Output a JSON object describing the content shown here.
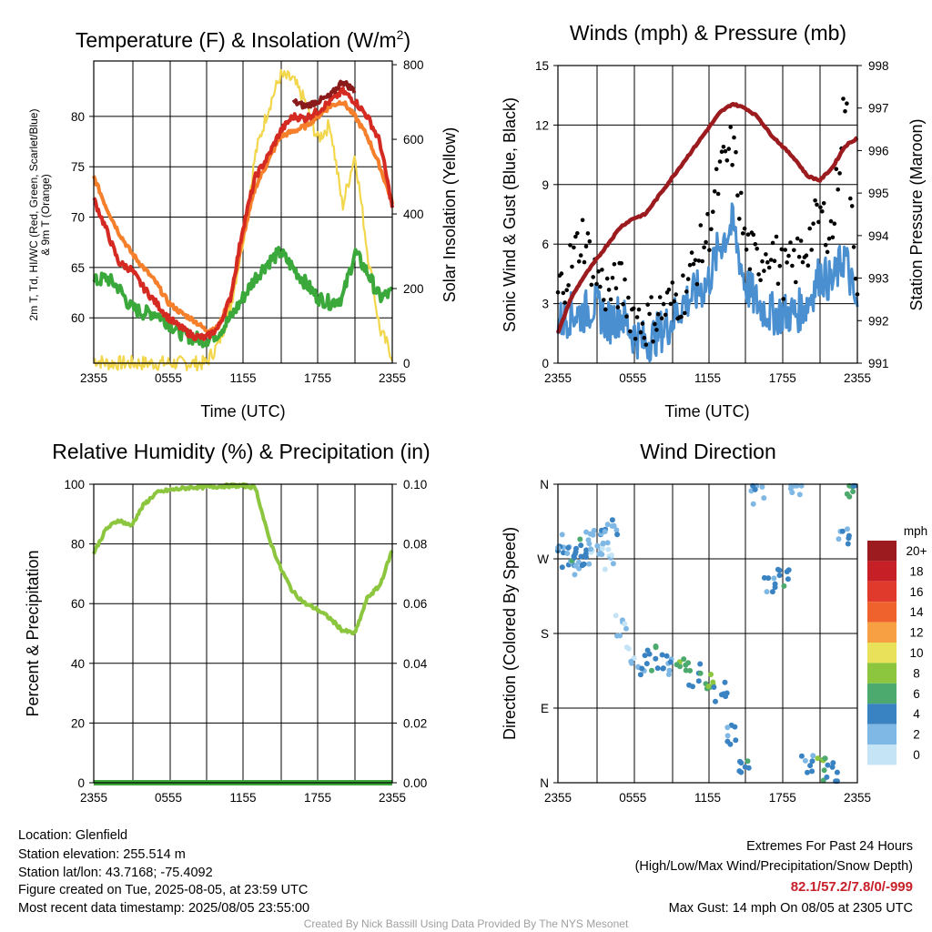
{
  "panels": {
    "temp": {
      "title": "Temperature (F) & Insolation (W/m²)",
      "title_main": "Temperature (F) & Insolation (W/m",
      "title_sup": "2",
      "title_end": ")",
      "xlabel": "Time (UTC)",
      "ylabel_line1": "2m T, Td, HI/WC (Red, Green, Scarlet/Blue)",
      "ylabel_line2": "& 9m T (Orange)",
      "y2label": "Solar Insolation (Yellow)"
    },
    "wind": {
      "title": "Winds (mph) & Pressure (mb)",
      "xlabel": "Time (UTC)",
      "ylabel": "Sonic Wind & Gust (Blue, Black)",
      "y2label": "Station Pressure (Maroon)"
    },
    "rh": {
      "title": "Relative Humidity (%) & Precipitation (in)",
      "ylabel": "Percent & Precipitation"
    },
    "dir": {
      "title": "Wind Direction",
      "ylabel": "Direction (Colored By Speed)",
      "legend_title": "mph",
      "legend_labels": [
        "20+",
        "18",
        "16",
        "14",
        "12",
        "10",
        "8",
        "6",
        "4",
        "2",
        "0"
      ],
      "legend_colors": [
        "#9b1b1f",
        "#c62026",
        "#e03a2c",
        "#f0622d",
        "#f7a043",
        "#e9e15a",
        "#8cc63f",
        "#4daa6e",
        "#3a83c3",
        "#7fb8e4",
        "#c5e5f7"
      ]
    }
  },
  "chart_data": [
    {
      "type": "line",
      "title": "Temperature (F) & Insolation (W/m2)",
      "xlabel": "Time (UTC)",
      "xticks": [
        "2355",
        "0555",
        "1155",
        "1755",
        "2355"
      ],
      "ylim": [
        55.5,
        85.5
      ],
      "yticks": [
        60,
        65,
        70,
        75,
        80
      ],
      "y2lim": [
        0,
        810
      ],
      "y2ticks": [
        0,
        200,
        400,
        600,
        800
      ],
      "grid": true,
      "x_hours": [
        0,
        1,
        2,
        3,
        4,
        5,
        6,
        7,
        8,
        9,
        10,
        11,
        12,
        13,
        14,
        15,
        16,
        17,
        18,
        19,
        20,
        21,
        22,
        23,
        24
      ],
      "series": [
        {
          "name": "2m T",
          "color": "#d42a22",
          "axis": "left",
          "values": [
            71.8,
            68.8,
            65.5,
            64.8,
            63,
            61.5,
            60,
            59,
            58.2,
            58,
            59,
            62,
            69,
            74,
            76,
            78.5,
            80,
            79.8,
            80.5,
            81.5,
            82.5,
            81.5,
            80,
            77.5,
            71
          ]
        },
        {
          "name": "HI/WC",
          "color": "#8b1a1a",
          "axis": "left",
          "values": [
            null,
            null,
            null,
            null,
            null,
            null,
            null,
            null,
            null,
            null,
            null,
            null,
            null,
            null,
            null,
            null,
            81.5,
            81,
            81.5,
            82,
            83.5,
            82.5,
            null,
            null,
            null
          ]
        },
        {
          "name": "9m T",
          "color": "#f57f2a",
          "axis": "left",
          "values": [
            74,
            71,
            68.5,
            66.5,
            65,
            63.5,
            61.5,
            60.5,
            59.8,
            58.8,
            59,
            62,
            68,
            73,
            75.5,
            78,
            78.5,
            79,
            80,
            81,
            81.5,
            80,
            78,
            75,
            71.5
          ]
        },
        {
          "name": "Td",
          "color": "#3aa83a",
          "axis": "left",
          "values": [
            63.5,
            64,
            63,
            61,
            60.5,
            60.5,
            59.5,
            58.5,
            58,
            57.8,
            58.5,
            60,
            62,
            64,
            65.5,
            66.5,
            65,
            63.5,
            62,
            61.5,
            62,
            66.5,
            64.5,
            62,
            62.5
          ]
        },
        {
          "name": "Solar Insolation",
          "color": "#f2d64b",
          "axis": "right",
          "values": [
            10,
            0,
            0,
            0,
            0,
            0,
            0,
            0,
            0,
            0,
            50,
            150,
            330,
            560,
            680,
            770,
            760,
            700,
            600,
            640,
            420,
            560,
            300,
            90,
            20
          ]
        }
      ]
    },
    {
      "type": "line",
      "title": "Winds (mph) & Pressure (mb)",
      "xlabel": "Time (UTC)",
      "xticks": [
        "2355",
        "0555",
        "1155",
        "1755",
        "2355"
      ],
      "ylim": [
        0,
        15
      ],
      "yticks": [
        0,
        3,
        6,
        9,
        12,
        15
      ],
      "y2lim": [
        991,
        998
      ],
      "y2ticks": [
        991,
        992,
        993,
        994,
        995,
        996,
        997,
        998
      ],
      "grid": true,
      "x_hours": [
        0,
        1,
        2,
        3,
        4,
        5,
        6,
        7,
        8,
        9,
        10,
        11,
        12,
        13,
        14,
        15,
        16,
        17,
        18,
        19,
        20,
        21,
        22,
        23,
        24
      ],
      "series": [
        {
          "name": "Station Pressure",
          "color": "#9b1b1f",
          "axis": "right",
          "values": [
            991.7,
            992.5,
            993,
            993.4,
            993.8,
            994.2,
            994.4,
            994.5,
            994.9,
            995.3,
            995.7,
            996.1,
            996.5,
            996.9,
            997.1,
            997,
            996.8,
            996.4,
            996.1,
            995.8,
            995.4,
            995.3,
            995.6,
            996.1,
            996.3
          ]
        },
        {
          "name": "Sonic Wind",
          "color": "#4a8fd0",
          "axis": "left",
          "values": [
            2,
            2.5,
            2.5,
            3,
            2,
            2.5,
            1.5,
            1,
            1.5,
            2,
            3,
            3.5,
            4,
            6,
            7,
            4,
            3,
            2.5,
            2.5,
            2.5,
            3,
            4.5,
            4,
            5.5,
            2.5
          ]
        },
        {
          "name": "Gust",
          "color": "#000000",
          "axis": "left",
          "values": [
            3.5,
            5,
            6.5,
            4.5,
            3.5,
            4,
            2.5,
            2,
            2.5,
            3,
            3.5,
            5,
            6.5,
            9.5,
            11,
            6,
            5,
            6,
            4.5,
            5,
            6,
            7.5,
            6.5,
            13.5,
            4
          ]
        }
      ]
    },
    {
      "type": "line",
      "title": "Relative Humidity (%) & Precipitation (in)",
      "xticks": [
        "2355",
        "0555",
        "1155",
        "1755",
        "2355"
      ],
      "ylim": [
        0,
        100
      ],
      "yticks": [
        0,
        20,
        40,
        60,
        80,
        100
      ],
      "y2lim": [
        0,
        0.1
      ],
      "y2ticks": [
        "0.00",
        "0.02",
        "0.04",
        "0.06",
        "0.08",
        "0.10"
      ],
      "grid": true,
      "x_hours": [
        0,
        1,
        2,
        3,
        4,
        5,
        6,
        7,
        8,
        9,
        10,
        11,
        12,
        13,
        14,
        15,
        16,
        17,
        18,
        19,
        20,
        21,
        22,
        23,
        24
      ],
      "series": [
        {
          "name": "Relative Humidity",
          "color": "#8cc63f",
          "axis": "left",
          "values": [
            77,
            85,
            88,
            86,
            93,
            97,
            98,
            98.5,
            99,
            99,
            99.3,
            99.5,
            99.5,
            99,
            83,
            72,
            64,
            60,
            58,
            55,
            51,
            50,
            62,
            66,
            78
          ]
        },
        {
          "name": "Precipitation",
          "color": "#3aa83a",
          "axis": "right",
          "values": [
            0,
            0,
            0,
            0,
            0,
            0,
            0,
            0,
            0,
            0,
            0,
            0,
            0,
            0,
            0,
            0,
            0,
            0,
            0,
            0,
            0,
            0,
            0,
            0,
            0
          ]
        }
      ]
    },
    {
      "type": "scatter",
      "title": "Wind Direction",
      "xticks": [
        "2355",
        "0555",
        "1155",
        "1755",
        "2355"
      ],
      "yticks": [
        "N",
        "E",
        "S",
        "W",
        "N"
      ],
      "ylim": [
        0,
        360
      ],
      "grid": true,
      "legend": "right",
      "points": [
        {
          "x": 0.3,
          "dir": 285,
          "speed": 2
        },
        {
          "x": 0.8,
          "dir": 270,
          "speed": 3
        },
        {
          "x": 1.2,
          "dir": 265,
          "speed": 2
        },
        {
          "x": 1.6,
          "dir": 280,
          "speed": 4
        },
        {
          "x": 2.0,
          "dir": 275,
          "speed": 3
        },
        {
          "x": 2.5,
          "dir": 290,
          "speed": 2
        },
        {
          "x": 3.0,
          "dir": 285,
          "speed": 1
        },
        {
          "x": 3.5,
          "dir": 300,
          "speed": 2
        },
        {
          "x": 4.0,
          "dir": 270,
          "speed": 0
        },
        {
          "x": 4.3,
          "dir": 305,
          "speed": 3
        },
        {
          "x": 5.0,
          "dir": 190,
          "speed": 1
        },
        {
          "x": 6.0,
          "dir": 150,
          "speed": 1
        },
        {
          "x": 7.0,
          "dir": 145,
          "speed": 3
        },
        {
          "x": 8.0,
          "dir": 150,
          "speed": 4
        },
        {
          "x": 9.0,
          "dir": 140,
          "speed": 3
        },
        {
          "x": 10.0,
          "dir": 140,
          "speed": 6
        },
        {
          "x": 11.0,
          "dir": 130,
          "speed": 5
        },
        {
          "x": 12.0,
          "dir": 120,
          "speed": 6
        },
        {
          "x": 13.0,
          "dir": 110,
          "speed": 4
        },
        {
          "x": 14.0,
          "dir": 60,
          "speed": 3
        },
        {
          "x": 15.0,
          "dir": 20,
          "speed": 4
        },
        {
          "x": 16.0,
          "dir": 350,
          "speed": 2
        },
        {
          "x": 17.0,
          "dir": 240,
          "speed": 3
        },
        {
          "x": 18.0,
          "dir": 250,
          "speed": 4
        },
        {
          "x": 19.0,
          "dir": 355,
          "speed": 2
        },
        {
          "x": 20.0,
          "dir": 20,
          "speed": 3
        },
        {
          "x": 21.0,
          "dir": 15,
          "speed": 6
        },
        {
          "x": 22.0,
          "dir": 10,
          "speed": 4
        },
        {
          "x": 23.0,
          "dir": 300,
          "speed": 3
        },
        {
          "x": 23.6,
          "dir": 350,
          "speed": 5
        }
      ]
    }
  ],
  "footer_left": [
    "Location: Glenfield",
    "Station elevation: 255.514 m",
    "Station lat/lon: 43.7168; -75.4092",
    "Figure created on Tue, 2025-08-05, at 23:59 UTC",
    "Most recent data timestamp: 2025/08/05 23:55:00"
  ],
  "footer_right": {
    "line1": "Extremes For Past 24 Hours",
    "line2": "(High/Low/Max Wind/Precipitation/Snow Depth)",
    "extremes": "82.1/57.2/7.8/0/-999",
    "gust": "Max Gust: 14 mph On 08/05 at 2305 UTC"
  },
  "credit": "Created By Nick Bassill Using Data Provided By The NYS Mesonet"
}
